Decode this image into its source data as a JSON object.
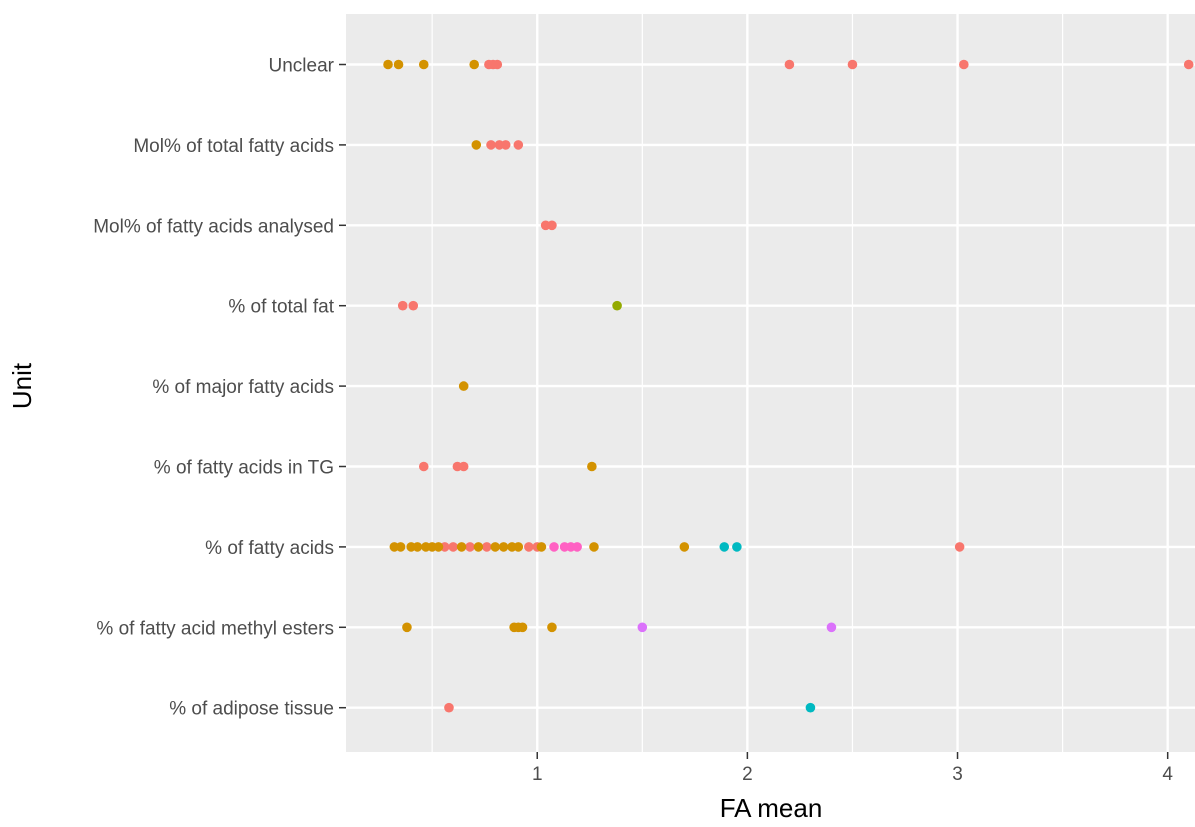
{
  "chart_data": {
    "type": "scatter",
    "xlabel": "FA mean",
    "ylabel": "Unit",
    "xlim": [
      0.09,
      4.13
    ],
    "xticks": [
      1,
      2,
      3,
      4
    ],
    "x_minor_ticks": [
      0.5,
      1.5,
      2.5,
      3.5
    ],
    "xtick_labels": [
      "1",
      "2",
      "3",
      "4"
    ],
    "grid": true,
    "legend": "none",
    "panel_background": "#ebebeb",
    "grid_color": "#ffffff",
    "categories": [
      "% of adipose tissue",
      "% of fatty acid methyl esters",
      "% of fatty acids",
      "% of fatty acids in TG",
      "% of major fatty acids",
      "% of total fat",
      "Mol% of fatty acids analysed",
      "Mol% of total fatty acids",
      "Unclear"
    ],
    "series": [
      {
        "color": "#f8766d",
        "points": [
          {
            "y": "Unclear",
            "x": 0.77
          },
          {
            "y": "Unclear",
            "x": 0.79
          },
          {
            "y": "Unclear",
            "x": 0.81
          },
          {
            "y": "Unclear",
            "x": 2.2
          },
          {
            "y": "Unclear",
            "x": 2.5
          },
          {
            "y": "Unclear",
            "x": 3.03
          },
          {
            "y": "Unclear",
            "x": 4.1
          },
          {
            "y": "Mol% of total fatty acids",
            "x": 0.78
          },
          {
            "y": "Mol% of total fatty acids",
            "x": 0.82
          },
          {
            "y": "Mol% of total fatty acids",
            "x": 0.85
          },
          {
            "y": "Mol% of total fatty acids",
            "x": 0.91
          },
          {
            "y": "Mol% of fatty acids analysed",
            "x": 1.04
          },
          {
            "y": "Mol% of fatty acids analysed",
            "x": 1.07
          },
          {
            "y": "% of total fat",
            "x": 0.36
          },
          {
            "y": "% of total fat",
            "x": 0.41
          },
          {
            "y": "% of fatty acids in TG",
            "x": 0.46
          },
          {
            "y": "% of fatty acids in TG",
            "x": 0.62
          },
          {
            "y": "% of fatty acids in TG",
            "x": 0.65
          },
          {
            "y": "% of fatty acids",
            "x": 0.56
          },
          {
            "y": "% of fatty acids",
            "x": 0.6
          },
          {
            "y": "% of fatty acids",
            "x": 0.68
          },
          {
            "y": "% of fatty acids",
            "x": 0.76
          },
          {
            "y": "% of fatty acids",
            "x": 0.96
          },
          {
            "y": "% of fatty acids",
            "x": 1.0
          },
          {
            "y": "% of fatty acids",
            "x": 3.01
          },
          {
            "y": "% of adipose tissue",
            "x": 0.58
          }
        ]
      },
      {
        "color": "#d39200",
        "points": [
          {
            "y": "Unclear",
            "x": 0.29
          },
          {
            "y": "Unclear",
            "x": 0.34
          },
          {
            "y": "Unclear",
            "x": 0.46
          },
          {
            "y": "Unclear",
            "x": 0.7
          },
          {
            "y": "Mol% of total fatty acids",
            "x": 0.71
          },
          {
            "y": "% of major fatty acids",
            "x": 0.65
          },
          {
            "y": "% of fatty acids in TG",
            "x": 1.26
          },
          {
            "y": "% of fatty acids",
            "x": 0.32
          },
          {
            "y": "% of fatty acids",
            "x": 0.35
          },
          {
            "y": "% of fatty acids",
            "x": 0.4
          },
          {
            "y": "% of fatty acids",
            "x": 0.43
          },
          {
            "y": "% of fatty acids",
            "x": 0.47
          },
          {
            "y": "% of fatty acids",
            "x": 0.5
          },
          {
            "y": "% of fatty acids",
            "x": 0.53
          },
          {
            "y": "% of fatty acids",
            "x": 0.64
          },
          {
            "y": "% of fatty acids",
            "x": 0.72
          },
          {
            "y": "% of fatty acids",
            "x": 0.8
          },
          {
            "y": "% of fatty acids",
            "x": 0.84
          },
          {
            "y": "% of fatty acids",
            "x": 0.88
          },
          {
            "y": "% of fatty acids",
            "x": 0.91
          },
          {
            "y": "% of fatty acids",
            "x": 1.02
          },
          {
            "y": "% of fatty acids",
            "x": 1.27
          },
          {
            "y": "% of fatty acids",
            "x": 1.7
          },
          {
            "y": "% of fatty acid methyl esters",
            "x": 0.38
          },
          {
            "y": "% of fatty acid methyl esters",
            "x": 0.89
          },
          {
            "y": "% of fatty acid methyl esters",
            "x": 0.91
          },
          {
            "y": "% of fatty acid methyl esters",
            "x": 0.93
          },
          {
            "y": "% of fatty acid methyl esters",
            "x": 1.07
          }
        ]
      },
      {
        "color": "#93aa00",
        "points": [
          {
            "y": "% of total fat",
            "x": 1.38
          }
        ]
      },
      {
        "color": "#00b9c1",
        "points": [
          {
            "y": "% of fatty acids",
            "x": 1.89
          },
          {
            "y": "% of fatty acids",
            "x": 1.95
          },
          {
            "y": "% of adipose tissue",
            "x": 2.3
          }
        ]
      },
      {
        "color": "#db72fb",
        "points": [
          {
            "y": "% of fatty acid methyl esters",
            "x": 1.5
          },
          {
            "y": "% of fatty acid methyl esters",
            "x": 2.4
          }
        ]
      },
      {
        "color": "#ff61c3",
        "points": [
          {
            "y": "% of fatty acids",
            "x": 1.08
          },
          {
            "y": "% of fatty acids",
            "x": 1.13
          },
          {
            "y": "% of fatty acids",
            "x": 1.16
          },
          {
            "y": "% of fatty acids",
            "x": 1.19
          }
        ]
      }
    ]
  }
}
